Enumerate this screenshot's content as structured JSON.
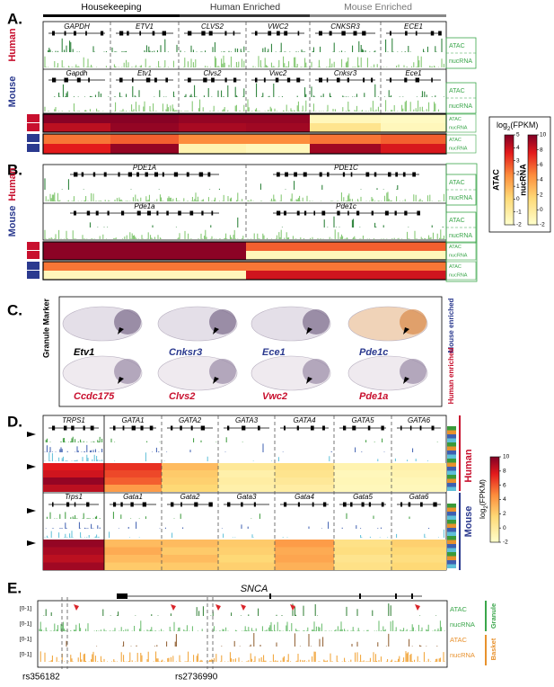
{
  "panel_labels": [
    "A.",
    "B.",
    "C.",
    "D.",
    "E."
  ],
  "panel_a": {
    "categories": [
      "Housekeeping",
      "Human Enriched",
      "Mouse Enriched"
    ],
    "species": [
      "Human",
      "Mouse"
    ],
    "human_genes": [
      "GAPDH",
      "ETV1",
      "CLVS2",
      "VWC2",
      "CNKSR3",
      "ECE1"
    ],
    "mouse_genes": [
      "Gapdh",
      "Etv1",
      "Clvs2",
      "Vwc2",
      "Cnksr3",
      "Ece1"
    ],
    "tracks": [
      "ATAC",
      "nucRNA"
    ]
  },
  "legend_a": {
    "title": [
      "log",
      "2",
      "(FPKM)"
    ],
    "atac_label": "ATAC",
    "nucrna_label": "nucRNA",
    "atac_ticks": [
      5,
      4,
      3,
      2,
      1,
      0,
      -1,
      -2
    ],
    "nucrna_ticks": [
      10,
      8,
      6,
      4,
      2,
      0,
      -2
    ]
  },
  "panel_b": {
    "species": [
      "Human",
      "Mouse"
    ],
    "human_genes": [
      "PDE1A",
      "PDE1C"
    ],
    "mouse_genes": [
      "Pde1a",
      "Pde1c"
    ]
  },
  "panel_c": {
    "row_label": "Granule Marker",
    "mouse_enriched": [
      "Etv1",
      "Cnksr3",
      "Ece1",
      "Pde1c"
    ],
    "human_enriched": [
      "Ccdc175",
      "Clvs2",
      "Vwc2",
      "Pde1a"
    ],
    "side_labels": [
      "Mouse enriched",
      "Human enriched"
    ]
  },
  "panel_d": {
    "human_genes": [
      "TRPS1",
      "GATA1",
      "GATA2",
      "GATA3",
      "GATA4",
      "GATA5",
      "GATA6"
    ],
    "mouse_genes": [
      "Trps1",
      "Gata1",
      "Gata2",
      "Gata3",
      "Gata4",
      "Gata5",
      "Gata6"
    ],
    "species": [
      "Human",
      "Mouse"
    ],
    "legend_title": [
      "log",
      "2",
      "(FPKM)"
    ],
    "legend_ticks": [
      10,
      8,
      6,
      4,
      2,
      0,
      -2
    ]
  },
  "panel_e": {
    "gene": "SNCA",
    "scale_labels": [
      "[0-1]",
      "[0-1]",
      "[0-1]",
      "[0-1]"
    ],
    "tracks": [
      "ATAC",
      "nucRNA",
      "ATAC",
      "nucRNA"
    ],
    "cell_types": [
      "Granule",
      "Basket"
    ],
    "snps": [
      "rs356182",
      "rs2736990"
    ]
  }
}
